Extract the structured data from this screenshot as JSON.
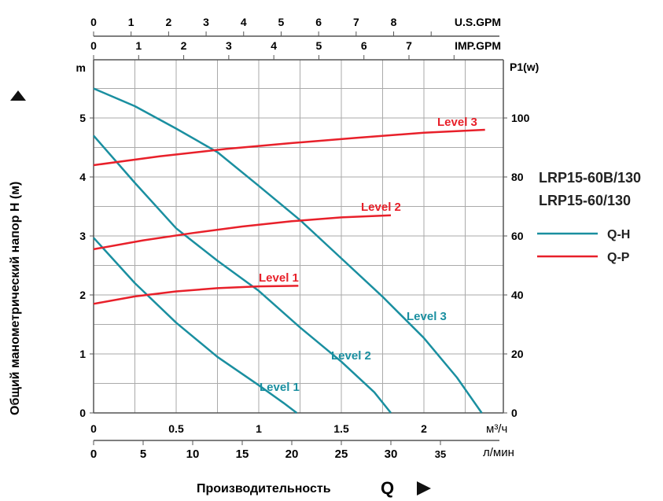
{
  "chart_data": {
    "type": "line",
    "title": "",
    "models": [
      "LRP15-60B/130",
      "LRP15-60/130"
    ],
    "xlabel": "Производительность",
    "xlabel_symbol": "Q",
    "ylabel": "Общий манометрический напор H (м)",
    "y_unit": "m",
    "y2_unit": "P1(w)",
    "x_units": {
      "m3h": "м³/ч",
      "lmin": "л/мин",
      "usgpm": "U.S.GPM",
      "impgpm": "IMP.GPM"
    },
    "xlim_m3h": [
      0,
      2.47
    ],
    "ylim": [
      0,
      5.96
    ],
    "y2lim": [
      0,
      119
    ],
    "x_ticks_m3h": [
      "0",
      "0.5",
      "1",
      "1.5",
      "2"
    ],
    "x_ticks_lmin": [
      "0",
      "5",
      "10",
      "15",
      "20",
      "25",
      "30",
      "35"
    ],
    "x_ticks_usgpm": [
      "0",
      "1",
      "2",
      "3",
      "4",
      "5",
      "6",
      "7",
      "8"
    ],
    "x_ticks_impgpm": [
      "0",
      "1",
      "2",
      "3",
      "4",
      "5",
      "6",
      "7"
    ],
    "y_ticks": [
      "0",
      "1",
      "2",
      "3",
      "4",
      "5"
    ],
    "y2_ticks": [
      "0",
      "20",
      "40",
      "60",
      "80",
      "100"
    ],
    "grid": true,
    "legend": [
      {
        "name": "Q-H",
        "color": "#1a8fa0"
      },
      {
        "name": "Q-P",
        "color": "#e8202a"
      }
    ],
    "legend_placement": "right",
    "series_qh": [
      {
        "name": "Level 1",
        "x": [
          0,
          0.25,
          0.5,
          0.75,
          1.0,
          1.15,
          1.23
        ],
        "y": [
          2.97,
          2.2,
          1.53,
          0.95,
          0.47,
          0.17,
          0
        ]
      },
      {
        "name": "Level 2",
        "x": [
          0,
          0.25,
          0.5,
          0.75,
          1.0,
          1.25,
          1.5,
          1.7,
          1.8
        ],
        "y": [
          4.7,
          3.9,
          3.13,
          2.58,
          2.07,
          1.45,
          0.87,
          0.35,
          0
        ]
      },
      {
        "name": "Level 3",
        "x": [
          0,
          0.25,
          0.5,
          0.75,
          1.0,
          1.25,
          1.5,
          1.75,
          2.0,
          2.2,
          2.35
        ],
        "y": [
          5.5,
          5.2,
          4.82,
          4.42,
          3.85,
          3.27,
          2.62,
          1.97,
          1.27,
          0.6,
          0
        ]
      }
    ],
    "series_qp": [
      {
        "name": "Level 1",
        "x": [
          0,
          0.25,
          0.5,
          0.75,
          1.0,
          1.24
        ],
        "y": [
          37,
          39.5,
          41.2,
          42.3,
          42.9,
          43.1
        ]
      },
      {
        "name": "Level 2",
        "x": [
          0,
          0.3,
          0.6,
          0.9,
          1.2,
          1.5,
          1.8
        ],
        "y": [
          55.5,
          58.5,
          61,
          63.2,
          65,
          66.3,
          67
        ]
      },
      {
        "name": "Level 3",
        "x": [
          0,
          0.4,
          0.8,
          1.2,
          1.6,
          2.0,
          2.37
        ],
        "y": [
          84,
          87,
          89.5,
          91.5,
          93.3,
          95,
          96
        ]
      }
    ],
    "labels": {
      "qh": [
        "Level 1",
        "Level 2",
        "Level 3"
      ],
      "qp": [
        "Level 1",
        "Level 2",
        "Level 3"
      ]
    }
  }
}
